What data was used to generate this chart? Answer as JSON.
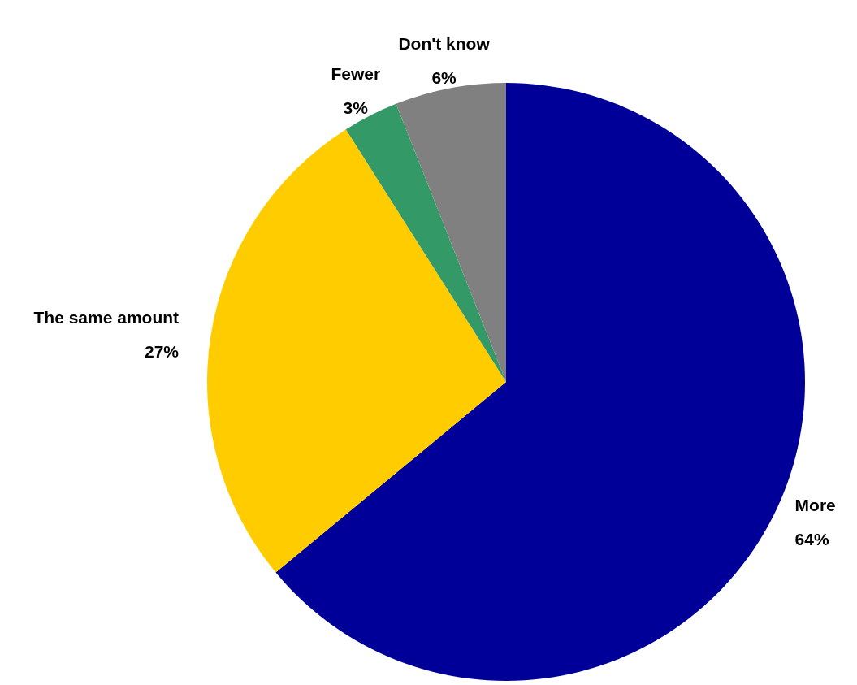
{
  "chart_data": {
    "type": "pie",
    "categories": [
      "More",
      "The same amount",
      "Fewer",
      "Don't know"
    ],
    "values": [
      64,
      27,
      3,
      6
    ],
    "colors": [
      "#000099",
      "#ffcc00",
      "#339966",
      "#808080"
    ],
    "value_labels": [
      "64%",
      "27%",
      "3%",
      "6%"
    ]
  }
}
